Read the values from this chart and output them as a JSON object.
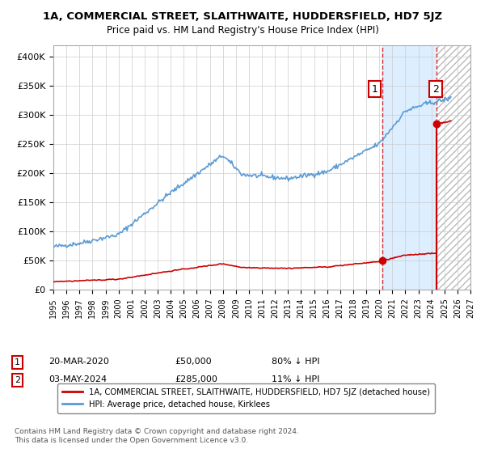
{
  "title": "1A, COMMERCIAL STREET, SLAITHWAITE, HUDDERSFIELD, HD7 5JZ",
  "subtitle": "Price paid vs. HM Land Registry's House Price Index (HPI)",
  "ylabel_ticks": [
    "£0",
    "£50K",
    "£100K",
    "£150K",
    "£200K",
    "£250K",
    "£300K",
    "£350K",
    "£400K"
  ],
  "ytick_values": [
    0,
    50000,
    100000,
    150000,
    200000,
    250000,
    300000,
    350000,
    400000
  ],
  "ylim": [
    0,
    420000
  ],
  "xlim_start": 1995,
  "xlim_end": 2027,
  "hpi_color": "#5b9bd5",
  "price_color": "#cc0000",
  "marker_color": "#cc0000",
  "background_color": "#ffffff",
  "grid_color": "#cccccc",
  "shade_color": "#ddeeff",
  "hatch_color": "#cccccc",
  "sale1_x": 2020.22,
  "sale1_y": 50000,
  "sale2_x": 2024.38,
  "sale2_y": 285000,
  "annotation1": {
    "label": "1",
    "date": "20-MAR-2020",
    "price": "£50,000",
    "hpi": "80% ↓ HPI"
  },
  "annotation2": {
    "label": "2",
    "date": "03-MAY-2024",
    "price": "£285,000",
    "hpi": "11% ↓ HPI"
  },
  "legend_line1": "1A, COMMERCIAL STREET, SLAITHWAITE, HUDDERSFIELD, HD7 5JZ (detached house)",
  "legend_line2": "HPI: Average price, detached house, Kirklees",
  "footnote": "Contains HM Land Registry data © Crown copyright and database right 2024.\nThis data is licensed under the Open Government Licence v3.0."
}
